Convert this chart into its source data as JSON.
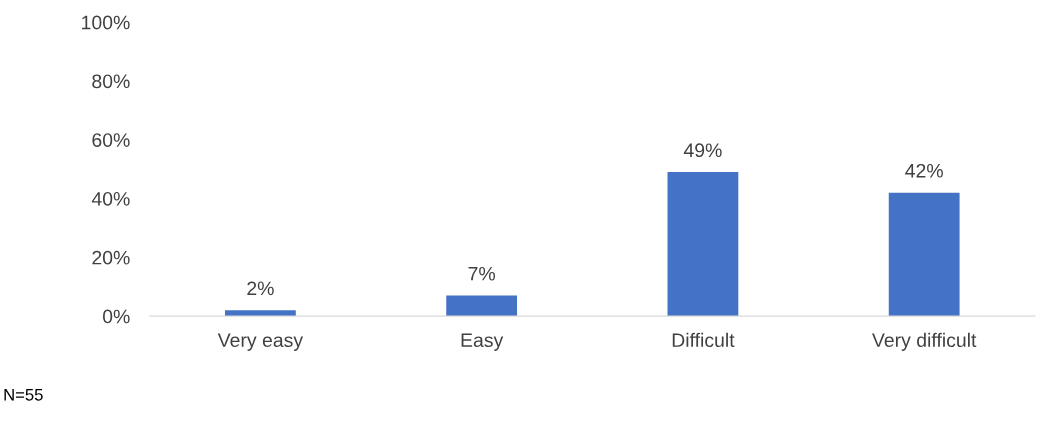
{
  "chart_data": {
    "type": "bar",
    "categories": [
      "Very easy",
      "Easy",
      "Difficult",
      "Very difficult"
    ],
    "values": [
      2,
      7,
      49,
      42
    ],
    "value_labels": [
      "2%",
      "7%",
      "49%",
      "42%"
    ],
    "color": "#4472c4",
    "ylim": [
      0,
      100
    ],
    "yticks": [
      {
        "value": 0,
        "label": "0%"
      },
      {
        "value": 20,
        "label": "20%"
      },
      {
        "value": 40,
        "label": "40%"
      },
      {
        "value": 60,
        "label": "60%"
      },
      {
        "value": 80,
        "label": "80%"
      },
      {
        "value": 100,
        "label": "100%"
      }
    ],
    "grid": false,
    "legend": false,
    "annotations": [
      "N=55"
    ]
  }
}
